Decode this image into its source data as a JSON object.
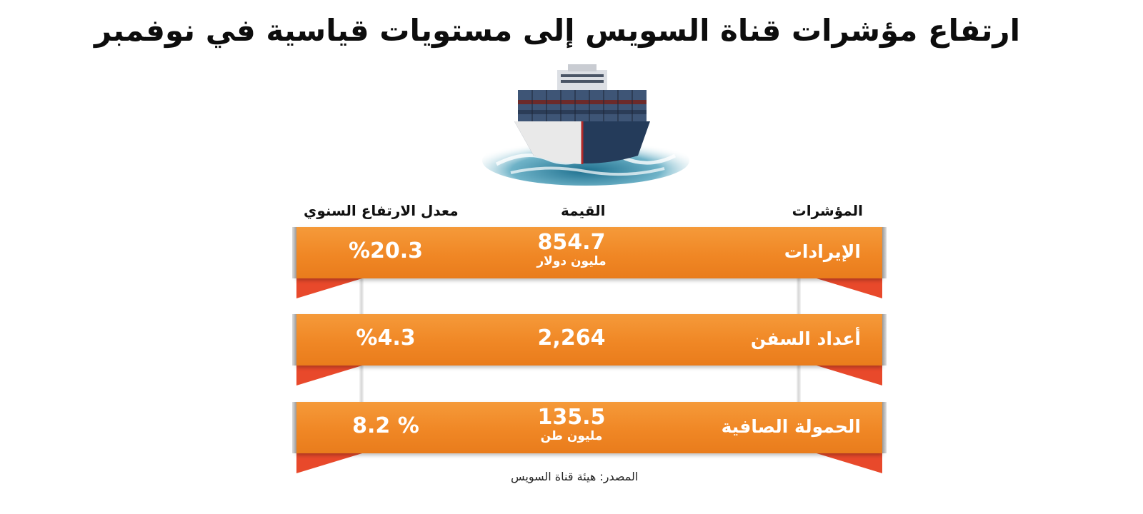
{
  "title": "ارتفاع مؤشرات قناة السويس إلى مستويات قياسية في نوفمبر",
  "headers": {
    "indicators": "المؤشرات",
    "value": "القيمة",
    "annual_rate": "معدل الارتفاع السنوي"
  },
  "rows": [
    {
      "indicator": "الإيرادات",
      "value": "854.7",
      "unit": "مليون دولار",
      "rate": "%20.3"
    },
    {
      "indicator": "أعداد السفن",
      "value": "2,264",
      "unit": "",
      "rate": "%4.3"
    },
    {
      "indicator": "الحمولة الصافية",
      "value": "135.5",
      "unit": "مليون طن",
      "rate": "% 8.2"
    }
  ],
  "source": "المصدر: هيئة قناة السويس",
  "colors": {
    "ribbon": "#f08725",
    "tail": "#e8492b"
  }
}
